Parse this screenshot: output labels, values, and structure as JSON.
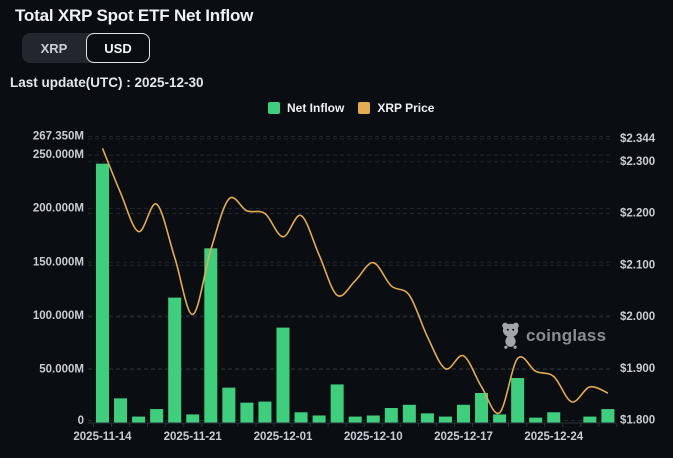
{
  "header": {
    "title": "Total XRP Spot ETF Net Inflow",
    "last_update": "Last update(UTC) : 2025-12-30",
    "unit_toggle": {
      "options": [
        "XRP",
        "USD"
      ],
      "selected": "USD"
    }
  },
  "legend": [
    {
      "label": "Net Inflow",
      "color": "#3ecf7d"
    },
    {
      "label": "XRP Price",
      "color": "#e5ab50"
    }
  ],
  "watermark": {
    "brand": "coinglass",
    "icon": "coinglass-bear-logo"
  },
  "colors": {
    "background": "#0a0d12",
    "bar": "#3ecf7d",
    "line": "#e5ab50",
    "grid": "#23272e",
    "axis_line": "#2c3139",
    "axis_text": "#c9cdd3"
  },
  "chart_data": {
    "type": "bar",
    "subtype": "combo-bar-line",
    "num_points": 29,
    "legend_position": "top",
    "grid": "dashed-horizontal",
    "x_axis": {
      "tick_labels": [
        {
          "index": 0,
          "label": "2025-11-14"
        },
        {
          "index": 5,
          "label": "2025-11-21"
        },
        {
          "index": 10,
          "label": "2025-12-01"
        },
        {
          "index": 15,
          "label": "2025-12-10"
        },
        {
          "index": 20,
          "label": "2025-12-17"
        },
        {
          "index": 25,
          "label": "2025-12-24"
        }
      ]
    },
    "left_axis": {
      "unit": "M (USD millions)",
      "min": 0,
      "max": 267.35,
      "ticks": [
        {
          "value": 0,
          "label": "0"
        },
        {
          "value": 50,
          "label": "50.000M"
        },
        {
          "value": 100,
          "label": "100.000M"
        },
        {
          "value": 150,
          "label": "150.000M"
        },
        {
          "value": 200,
          "label": "200.000M"
        },
        {
          "value": 250,
          "label": "250.000M"
        },
        {
          "value": 267.35,
          "label": "267.350M"
        }
      ]
    },
    "right_axis": {
      "unit": "USD",
      "min": 1.8,
      "max": 2.344,
      "ticks": [
        {
          "value": 1.8,
          "label": "$1.800"
        },
        {
          "value": 1.9,
          "label": "$1.900"
        },
        {
          "value": 2.0,
          "label": "$2.000"
        },
        {
          "value": 2.1,
          "label": "$2.100"
        },
        {
          "value": 2.2,
          "label": "$2.200"
        },
        {
          "value": 2.3,
          "label": "$2.300"
        },
        {
          "value": 2.344,
          "label": "$2.344"
        }
      ]
    },
    "series": [
      {
        "name": "Net Inflow",
        "type": "bar",
        "axis": "left",
        "color": "#3ecf7d",
        "values": [
          242,
          23,
          6,
          13,
          117,
          8,
          163,
          33,
          19,
          20,
          89,
          10,
          7,
          36,
          6,
          7,
          14,
          17,
          9,
          6,
          17,
          28,
          8,
          42,
          5,
          10,
          0,
          6,
          13
        ]
      },
      {
        "name": "XRP Price",
        "type": "line",
        "axis": "right",
        "color": "#e5ab50",
        "values": [
          2.326,
          2.24,
          2.165,
          2.218,
          2.115,
          2.005,
          2.13,
          2.228,
          2.205,
          2.2,
          2.155,
          2.196,
          2.12,
          2.042,
          2.07,
          2.105,
          2.06,
          2.042,
          1.962,
          1.9,
          1.925,
          1.865,
          1.815,
          1.92,
          1.895,
          1.885,
          1.836,
          1.865,
          1.853
        ]
      }
    ]
  }
}
